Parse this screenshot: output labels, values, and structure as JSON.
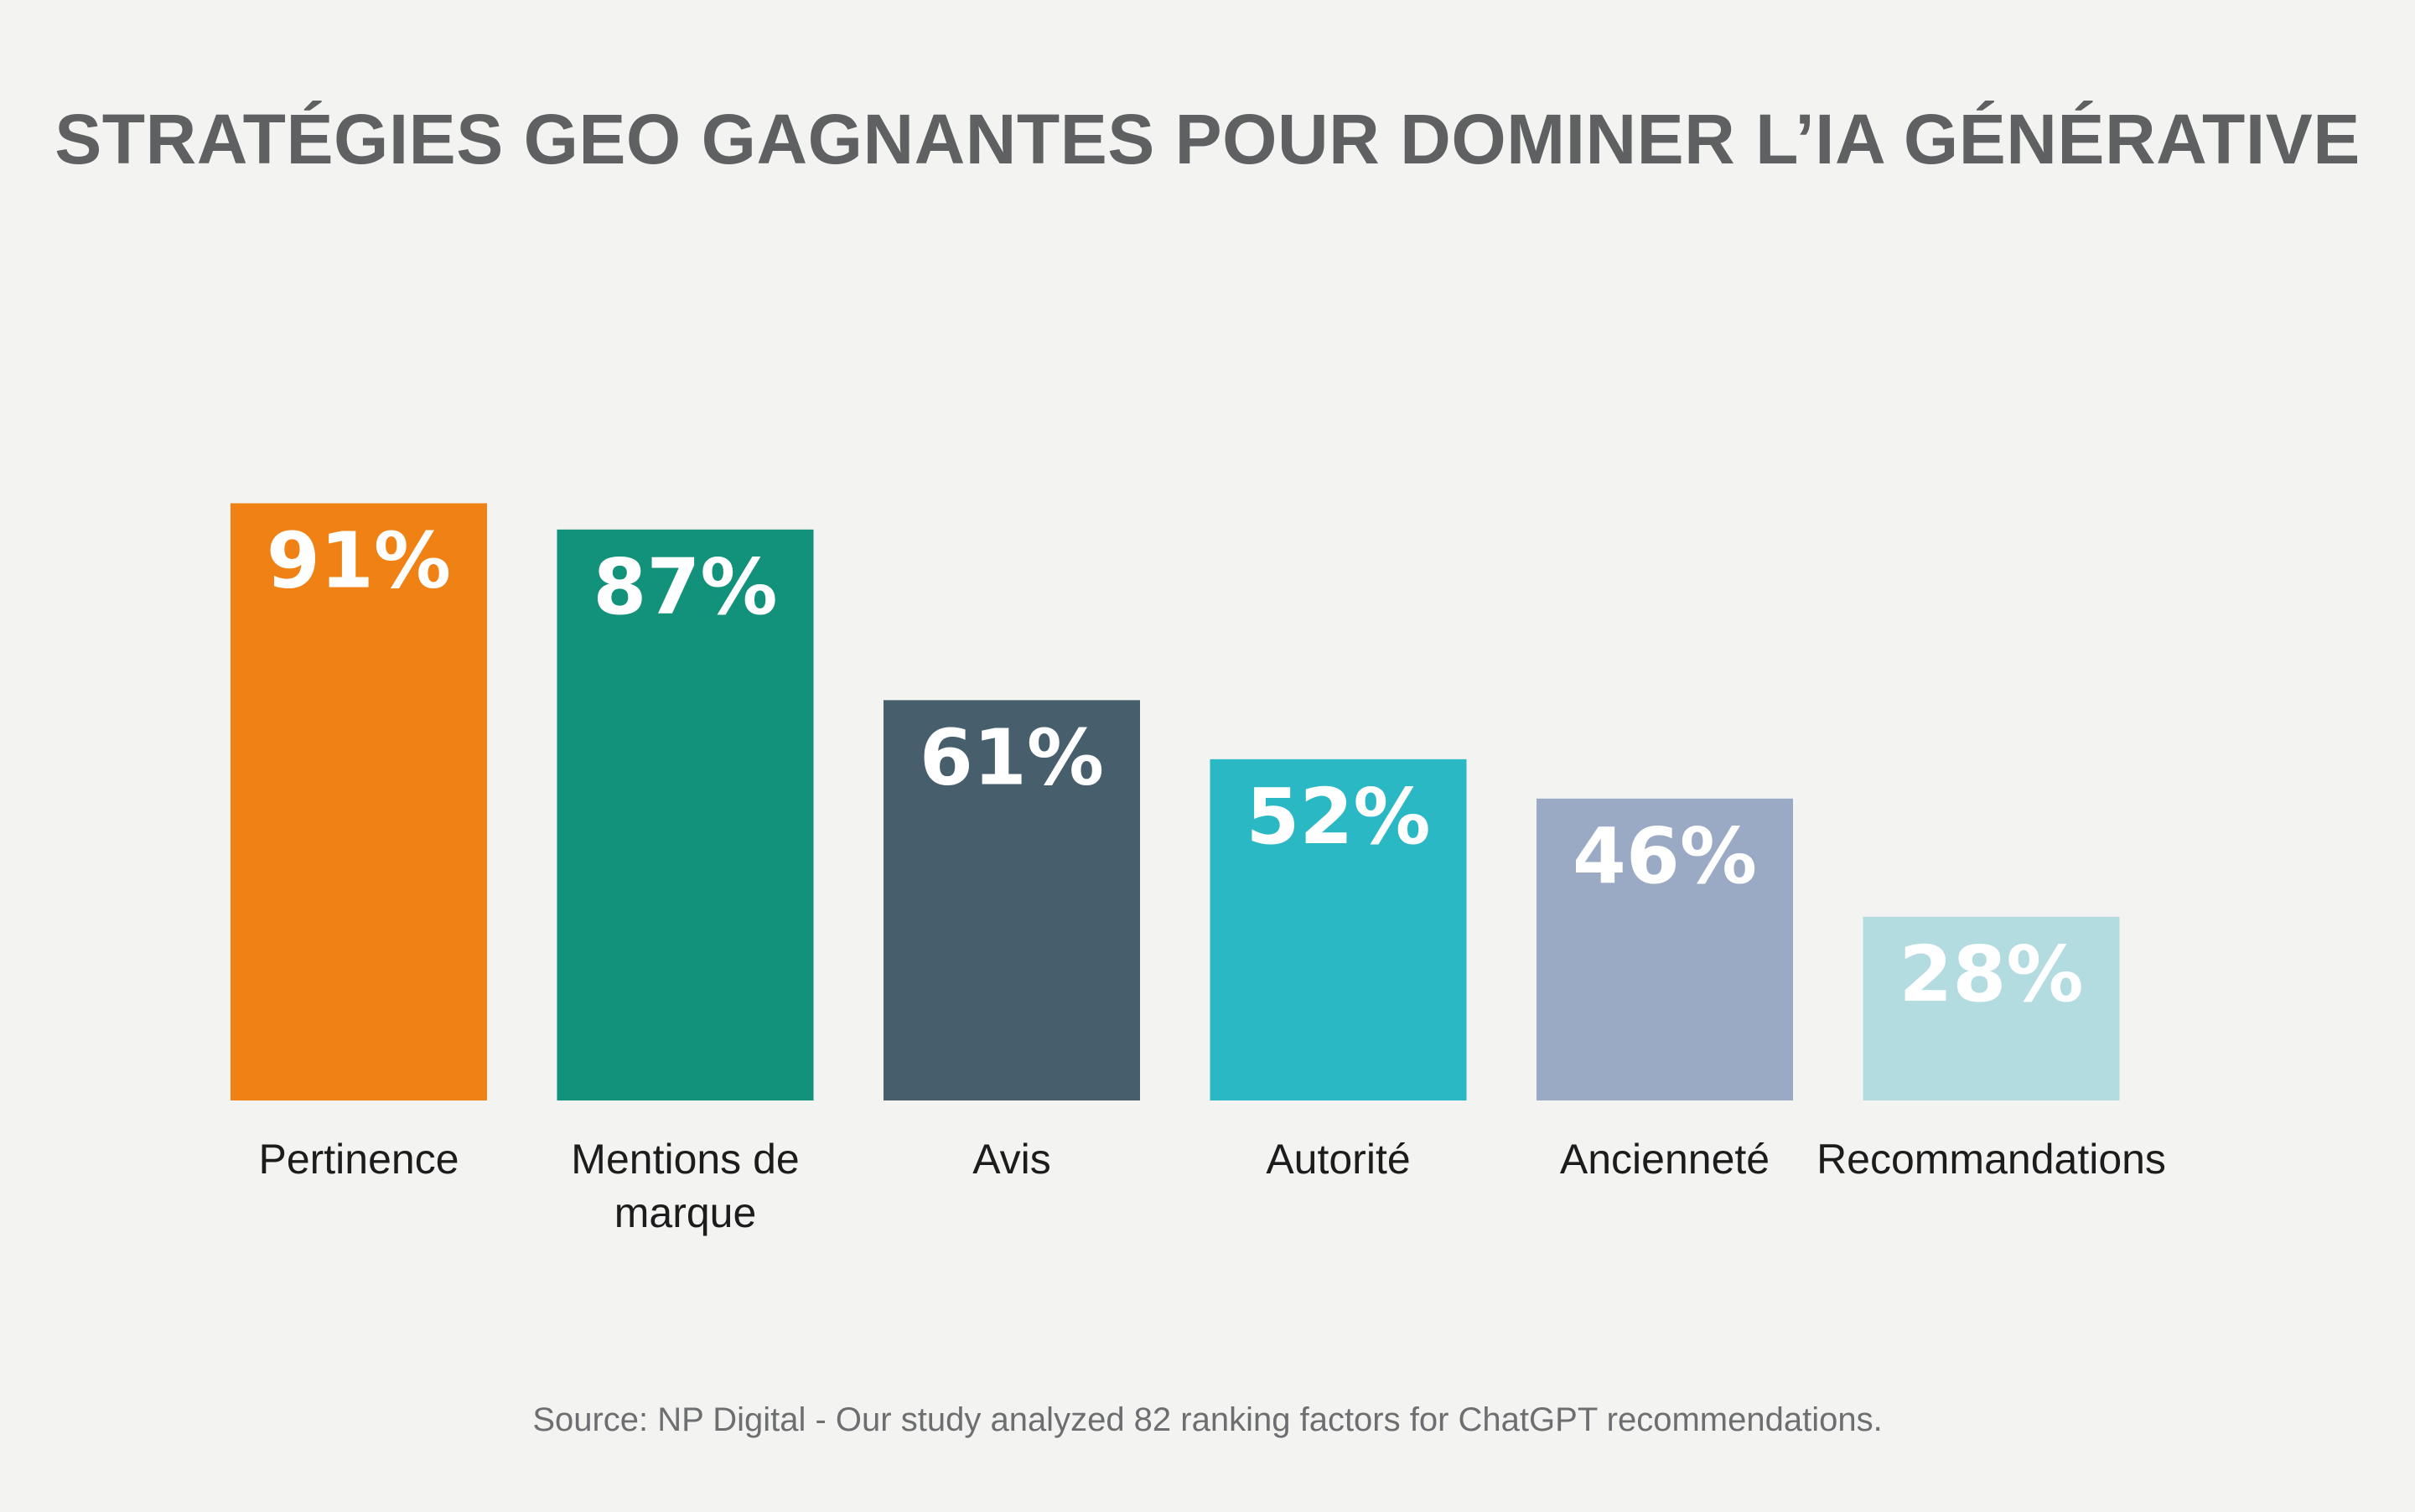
{
  "chart_data": {
    "type": "bar",
    "title": "STRATÉGIES GEO GAGNANTES POUR DOMINER L’IA GÉNÉRATIVE",
    "categories": [
      [
        "Pertinence"
      ],
      [
        "Mentions de",
        "marque"
      ],
      [
        "Avis"
      ],
      [
        "Autorité"
      ],
      [
        "Ancienneté"
      ],
      [
        "Recommandations"
      ]
    ],
    "values": [
      91,
      87,
      61,
      52,
      46,
      28
    ],
    "value_labels": [
      "91%",
      "87%",
      "61%",
      "52%",
      "46%",
      "28%"
    ],
    "colors": [
      "#f08114",
      "#12917b",
      "#475e6d",
      "#2ab8c4",
      "#9aaac5",
      "#b3dce0"
    ],
    "ylim": [
      0,
      100
    ],
    "grid": false,
    "legend": "none",
    "source": "Source: NP Digital - Our study analyzed 82 ranking factors for ChatGPT recommendations."
  }
}
